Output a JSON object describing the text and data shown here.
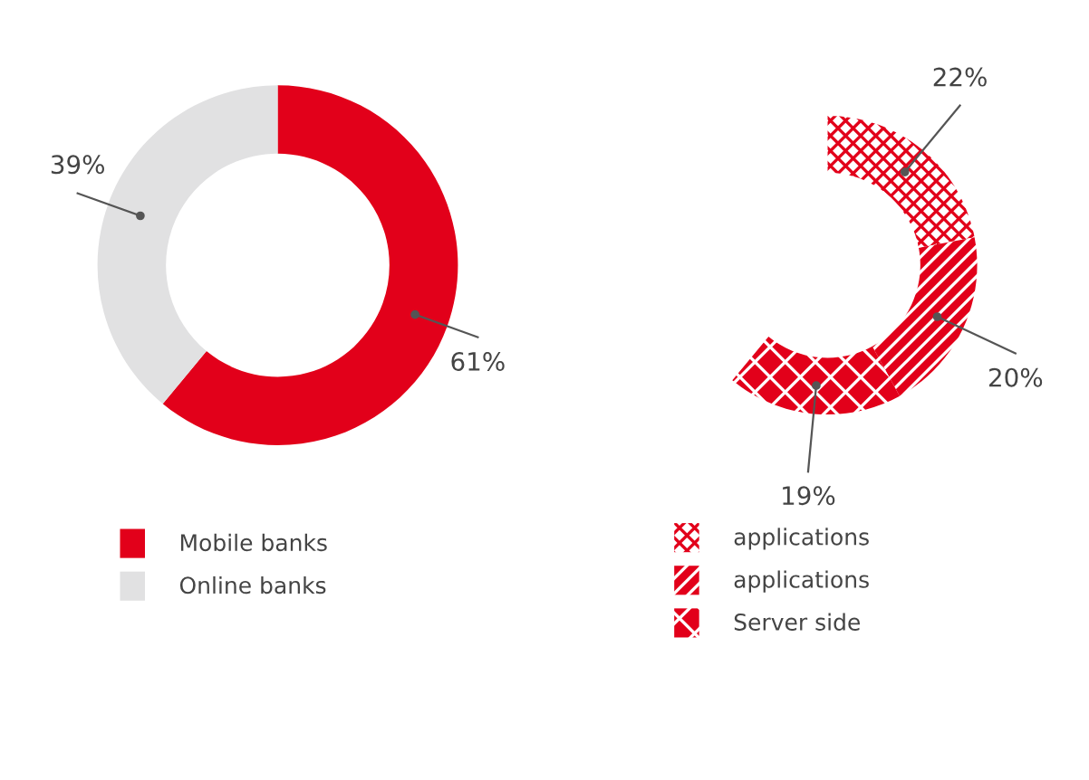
{
  "chart_data": [
    {
      "type": "donut",
      "categories": [
        "Mobile banks",
        "Online banks"
      ],
      "values": [
        61,
        39
      ],
      "colors": [
        "#e2001a",
        "#e1e1e2"
      ],
      "value_labels": [
        "61%",
        "39%"
      ],
      "legend": "bottom"
    },
    {
      "type": "donut",
      "categories": [
        "applications",
        "applications",
        "Server side"
      ],
      "values": [
        22,
        20,
        19
      ],
      "colors": [
        "#e2001a",
        "#e2001a",
        "#e2001a"
      ],
      "value_labels": [
        "22%",
        "20%",
        "19%"
      ],
      "legend": "bottom"
    }
  ]
}
